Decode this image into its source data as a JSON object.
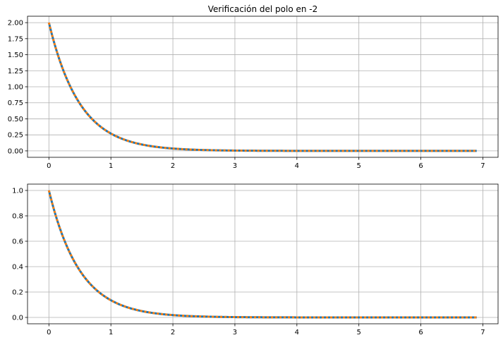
{
  "chart_data": [
    {
      "type": "line",
      "title": "Verificación del polo en -2",
      "xlabel": "",
      "ylabel": "",
      "xlim": [
        -0.345,
        7.245
      ],
      "ylim": [
        -0.1,
        2.1
      ],
      "xticks": [
        0,
        1,
        2,
        3,
        4,
        5,
        6,
        7
      ],
      "xtick_labels": [
        "0",
        "1",
        "2",
        "3",
        "4",
        "5",
        "6",
        "7"
      ],
      "yticks": [
        0,
        0.25,
        0.5,
        0.75,
        1,
        1.25,
        1.5,
        1.75,
        2
      ],
      "ytick_labels": [
        "0.00",
        "0.25",
        "0.50",
        "0.75",
        "1.00",
        "1.25",
        "1.50",
        "1.75",
        "2.00"
      ],
      "grid": true,
      "legend": "none",
      "series": [
        {
          "color": "#1f77b4",
          "style": "solid",
          "x_range": [
            0,
            6.9
          ],
          "amplitude": 2,
          "decay_rate": 2
        },
        {
          "color": "#ff7f0e",
          "style": "dotted",
          "x_range": [
            0,
            6.9
          ],
          "amplitude": 2,
          "decay_rate": 2
        }
      ]
    },
    {
      "type": "line",
      "title": "",
      "xlabel": "",
      "ylabel": "",
      "xlim": [
        -0.345,
        7.245
      ],
      "ylim": [
        -0.05,
        1.05
      ],
      "xticks": [
        0,
        1,
        2,
        3,
        4,
        5,
        6,
        7
      ],
      "xtick_labels": [
        "0",
        "1",
        "2",
        "3",
        "4",
        "5",
        "6",
        "7"
      ],
      "yticks": [
        0,
        0.2,
        0.4,
        0.6,
        0.8,
        1.0
      ],
      "ytick_labels": [
        "0.0",
        "0.2",
        "0.4",
        "0.6",
        "0.8",
        "1.0"
      ],
      "grid": true,
      "legend": "none",
      "series": [
        {
          "color": "#1f77b4",
          "style": "solid",
          "x_range": [
            0,
            6.9
          ],
          "amplitude": 1,
          "decay_rate": 2
        },
        {
          "color": "#ff7f0e",
          "style": "dotted",
          "x_range": [
            0,
            6.9
          ],
          "amplitude": 1,
          "decay_rate": 2
        }
      ]
    }
  ]
}
